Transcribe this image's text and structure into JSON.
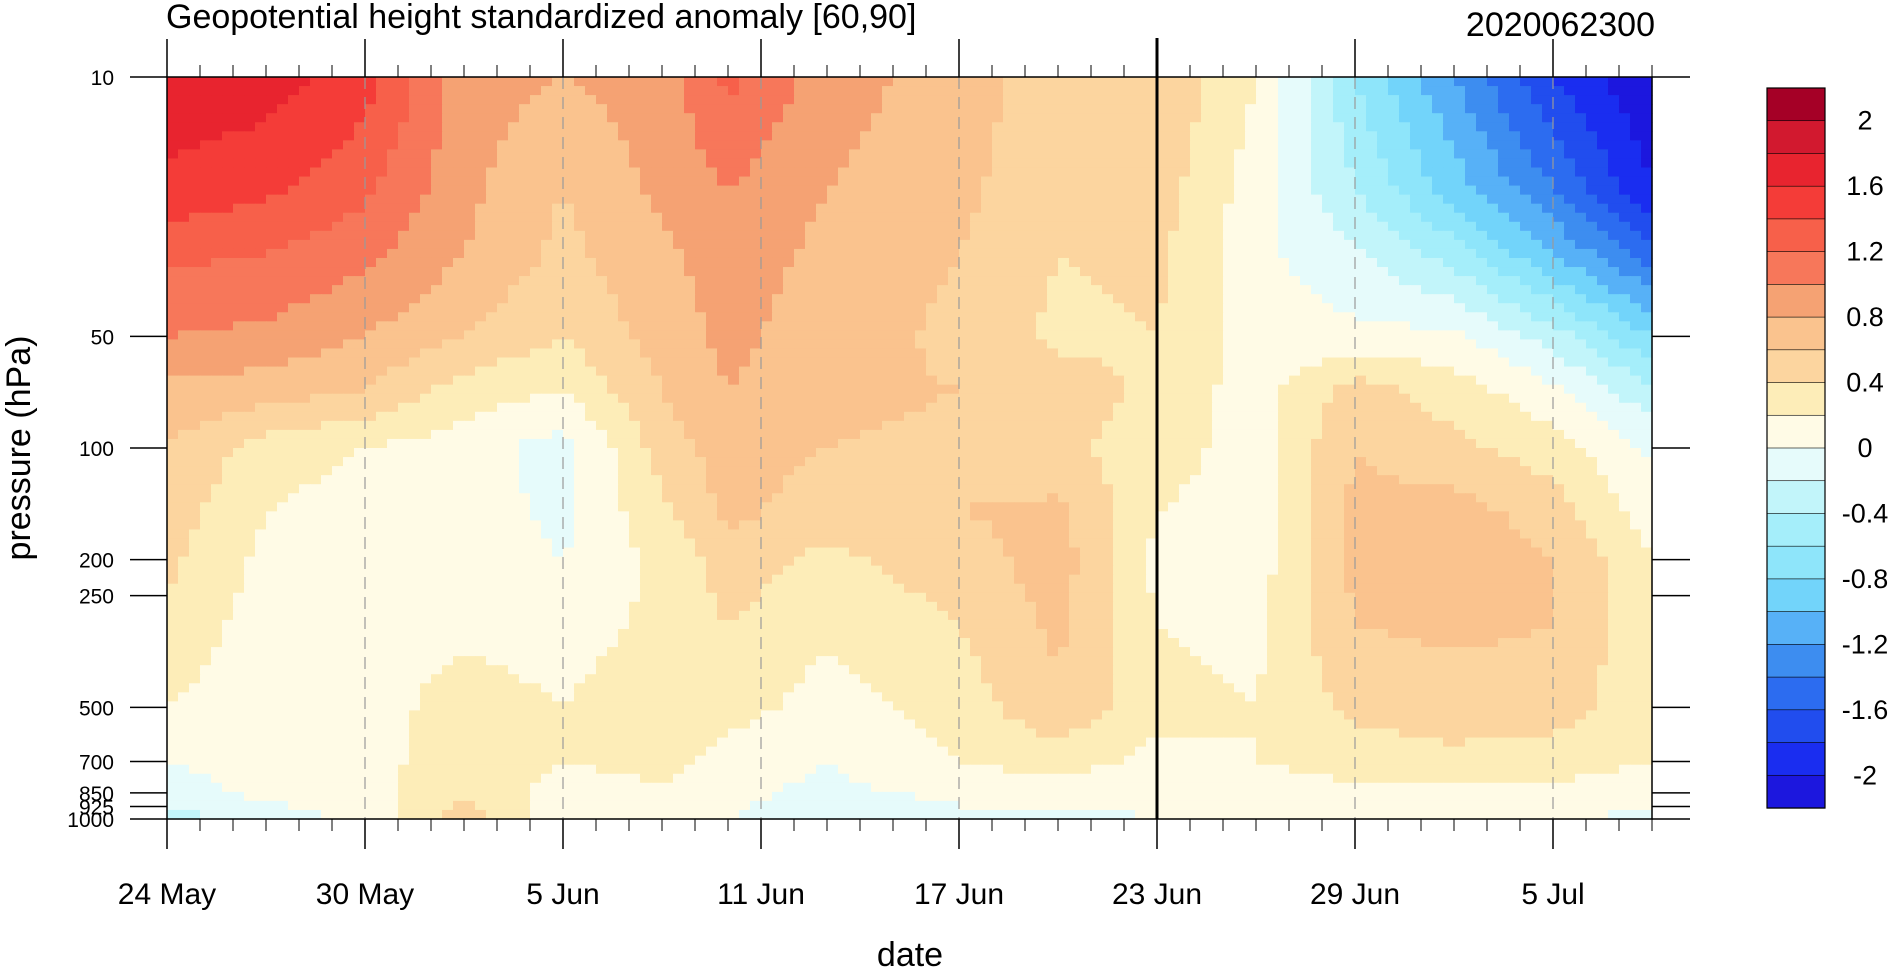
{
  "chart_data": {
    "type": "heatmap",
    "title": "Geopotential height standardized anomaly [60,90]",
    "subtitle": "2020062300",
    "xlabel": "date",
    "ylabel": "pressure (hPa)",
    "x_ticks": [
      "24 May",
      "30 May",
      "5 Jun",
      "11 Jun",
      "17 Jun",
      "23 Jun",
      "29 Jun",
      "5 Jul"
    ],
    "x_tick_dates": [
      "2020-05-24",
      "2020-05-30",
      "2020-06-05",
      "2020-06-11",
      "2020-06-17",
      "2020-06-23",
      "2020-06-29",
      "2020-07-05"
    ],
    "x_range": [
      "2020-05-24",
      "2020-07-08"
    ],
    "y_ticks": [
      10,
      50,
      100,
      200,
      250,
      500,
      700,
      850,
      925,
      1000
    ],
    "y_tick_labels": [
      "10",
      "50",
      "100",
      "200",
      "250",
      "500",
      "700",
      "850",
      "925",
      "1000"
    ],
    "y_scale": "log-reversed",
    "y_range": [
      1000,
      10
    ],
    "current_date": "2020-06-23",
    "colorbar": {
      "label_values": [
        "2",
        "1.6",
        "1.2",
        "0.8",
        "0.4",
        "0",
        "-0.4",
        "-0.8",
        "-1.2",
        "-1.6",
        "-2"
      ],
      "levels": [
        2.2,
        2.0,
        1.8,
        1.6,
        1.4,
        1.2,
        1.0,
        0.8,
        0.6,
        0.4,
        0.2,
        0.0,
        -0.2,
        -0.4,
        -0.6,
        -0.8,
        -1.0,
        -1.2,
        -1.4,
        -1.6,
        -1.8,
        -2.0,
        -2.2
      ],
      "colors": [
        "#a50026",
        "#d2192f",
        "#e8242f",
        "#f43c38",
        "#f7604a",
        "#f7775a",
        "#f5a273",
        "#fac38e",
        "#fcd59f",
        "#fdedb8",
        "#fffbe6",
        "#e6fbfb",
        "#c2f5fa",
        "#a5eefa",
        "#8ee5fa",
        "#72d4fa",
        "#57b1f7",
        "#3d8df0",
        "#2c6cf0",
        "#214dee",
        "#1a2df0",
        "#1c17de"
      ]
    },
    "grid": "dashed vertical lines at date ticks",
    "series": [
      {
        "name": "date_index",
        "values": [
          0,
          6,
          12,
          18,
          24,
          30,
          36,
          42,
          45
        ]
      }
    ],
    "field": {
      "pressure_levels": [
        10,
        20,
        30,
        50,
        70,
        100,
        150,
        200,
        300,
        500,
        700,
        850,
        1000
      ],
      "days": [
        0,
        3,
        6,
        9,
        12,
        15,
        17,
        20,
        24,
        27,
        30,
        33,
        36,
        39,
        42,
        45
      ],
      "values": [
        [
          1.75,
          1.7,
          1.5,
          0.9,
          0.8,
          0.9,
          1.25,
          0.9,
          0.7,
          0.5,
          0.6,
          0.2,
          -0.6,
          -1.2,
          -1.8,
          -2.2
        ],
        [
          1.55,
          1.45,
          1.25,
          0.85,
          0.6,
          0.85,
          1.0,
          0.8,
          0.65,
          0.45,
          0.5,
          0.1,
          -0.4,
          -0.9,
          -1.4,
          -2.0
        ],
        [
          1.25,
          1.2,
          1.05,
          0.8,
          0.55,
          0.75,
          0.9,
          0.75,
          0.6,
          0.4,
          0.45,
          0.05,
          -0.15,
          -0.5,
          -1.0,
          -1.5
        ],
        [
          1.0,
          0.95,
          0.8,
          0.6,
          0.4,
          0.7,
          0.85,
          0.7,
          0.55,
          0.35,
          0.4,
          0.1,
          0.05,
          0.05,
          -0.3,
          -0.8
        ],
        [
          0.75,
          0.7,
          0.6,
          0.3,
          0.2,
          0.6,
          0.8,
          0.65,
          0.6,
          0.5,
          0.35,
          0.1,
          0.5,
          0.3,
          0.05,
          -0.35
        ],
        [
          0.6,
          0.3,
          0.2,
          0.1,
          -0.1,
          0.5,
          0.7,
          0.6,
          0.55,
          0.45,
          0.3,
          0.1,
          0.6,
          0.45,
          0.3,
          -0.05
        ],
        [
          0.5,
          0.2,
          0.1,
          0.1,
          -0.05,
          0.35,
          0.65,
          0.5,
          0.6,
          0.65,
          0.2,
          0.1,
          0.65,
          0.7,
          0.5,
          0.1
        ],
        [
          0.45,
          0.15,
          0.1,
          0.1,
          0.0,
          0.25,
          0.5,
          0.35,
          0.5,
          0.7,
          0.15,
          0.1,
          0.65,
          0.7,
          0.6,
          0.2
        ],
        [
          0.35,
          0.1,
          0.1,
          0.15,
          0.1,
          0.25,
          0.4,
          0.25,
          0.4,
          0.65,
          0.2,
          0.15,
          0.6,
          0.65,
          0.6,
          0.25
        ],
        [
          0.2,
          0.05,
          0.1,
          0.3,
          0.2,
          0.35,
          0.3,
          0.1,
          0.3,
          0.55,
          0.25,
          0.2,
          0.45,
          0.5,
          0.5,
          0.25
        ],
        [
          0.0,
          0.1,
          0.1,
          0.35,
          0.2,
          0.3,
          0.1,
          0.0,
          0.2,
          0.3,
          0.15,
          0.2,
          0.3,
          0.35,
          0.3,
          0.2
        ],
        [
          -0.1,
          0.05,
          0.1,
          0.4,
          0.1,
          0.15,
          0.05,
          -0.05,
          0.05,
          0.05,
          0.05,
          0.1,
          0.15,
          0.15,
          0.15,
          0.1
        ],
        [
          -0.3,
          -0.1,
          0.05,
          0.5,
          0.05,
          0.05,
          0.0,
          -0.15,
          -0.05,
          -0.05,
          0.0,
          0.05,
          0.05,
          0.05,
          0.0,
          -0.05
        ]
      ]
    }
  }
}
